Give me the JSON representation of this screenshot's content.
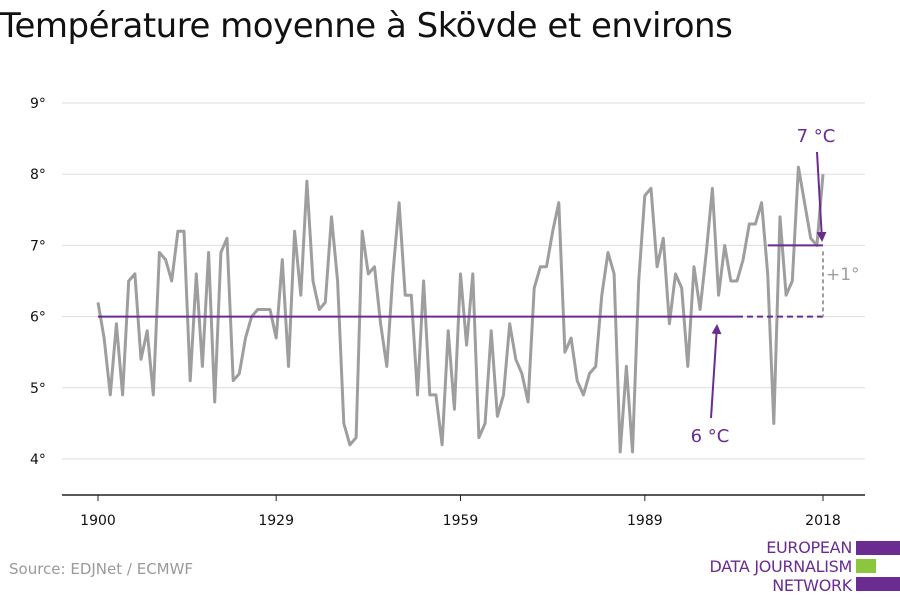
{
  "chart_data": {
    "type": "line",
    "title": "Température moyenne à Skövde et environs",
    "xlabel": "",
    "ylabel": "",
    "xlim": [
      1900,
      2018
    ],
    "ylim": [
      3.5,
      9.3
    ],
    "x_ticks": [
      1900,
      1929,
      1959,
      1989,
      2018
    ],
    "y_ticks": [
      {
        "value": 4,
        "label": "4°"
      },
      {
        "value": 5,
        "label": "5°"
      },
      {
        "value": 6,
        "label": "6°"
      },
      {
        "value": 7,
        "label": "7°"
      },
      {
        "value": 8,
        "label": "8°"
      },
      {
        "value": 9,
        "label": "9°"
      }
    ],
    "grid": true,
    "series": [
      {
        "x": [
          1900,
          1901,
          1902,
          1903,
          1904,
          1905,
          1906,
          1907,
          1908,
          1909,
          1910,
          1911,
          1912,
          1913,
          1914,
          1915,
          1916,
          1917,
          1918,
          1919,
          1920,
          1921,
          1922,
          1923,
          1924,
          1925,
          1926,
          1927,
          1928,
          1929,
          1930,
          1931,
          1932,
          1933,
          1934,
          1935,
          1936,
          1937,
          1938,
          1939,
          1940,
          1941,
          1942,
          1943,
          1944,
          1945,
          1946,
          1947,
          1948,
          1949,
          1950,
          1951,
          1952,
          1953,
          1954,
          1955,
          1956,
          1957,
          1958,
          1959,
          1960,
          1961,
          1962,
          1963,
          1964,
          1965,
          1966,
          1967,
          1968,
          1969,
          1970,
          1971,
          1972,
          1973,
          1974,
          1975,
          1976,
          1977,
          1978,
          1979,
          1980,
          1981,
          1982,
          1983,
          1984,
          1985,
          1986,
          1987,
          1988,
          1989,
          1990,
          1991,
          1992,
          1993,
          1994,
          1995,
          1996,
          1997,
          1998,
          1999,
          2000,
          2001,
          2002,
          2003,
          2004,
          2005,
          2006,
          2007,
          2008,
          2009,
          2010,
          2011,
          2012,
          2013,
          2014,
          2015,
          2016,
          2017,
          2018
        ],
        "values": [
          6.2,
          5.7,
          4.9,
          5.9,
          4.9,
          6.5,
          6.6,
          5.4,
          5.8,
          4.9,
          6.9,
          6.8,
          6.5,
          7.2,
          7.2,
          5.1,
          6.6,
          5.3,
          6.9,
          4.8,
          6.9,
          7.1,
          5.1,
          5.2,
          5.7,
          6.0,
          6.1,
          6.1,
          6.1,
          5.7,
          6.8,
          5.3,
          7.2,
          6.3,
          7.9,
          6.5,
          6.1,
          6.2,
          7.4,
          6.5,
          4.5,
          4.2,
          4.3,
          7.2,
          6.6,
          6.7,
          5.9,
          5.3,
          6.6,
          7.6,
          6.3,
          6.3,
          4.9,
          6.5,
          4.9,
          4.9,
          4.2,
          5.8,
          4.7,
          6.6,
          5.6,
          6.6,
          4.3,
          4.5,
          5.8,
          4.6,
          4.9,
          5.9,
          5.4,
          5.2,
          4.8,
          6.4,
          6.7,
          6.7,
          7.2,
          7.6,
          5.5,
          5.7,
          5.1,
          4.9,
          5.2,
          5.3,
          6.3,
          6.9,
          6.6,
          4.1,
          5.3,
          4.1,
          6.5,
          7.7,
          7.8,
          6.7,
          7.1,
          5.9,
          6.6,
          6.4,
          5.3,
          6.7,
          6.1,
          6.9,
          7.8,
          6.3,
          7.0,
          6.5,
          6.5,
          6.8,
          7.3,
          7.3,
          7.6,
          6.6,
          4.5,
          7.4,
          6.3,
          6.5,
          8.1,
          7.6,
          7.1,
          7.0,
          8.0
        ]
      }
    ],
    "annotations": {
      "baseline": {
        "value": 6,
        "label": "6 °C",
        "from": 1900,
        "to": 2018,
        "solid_until": 2004
      },
      "recent": {
        "value": 7,
        "label": "7 °C",
        "from": 2009,
        "to": 2018
      },
      "difference_label": "+1°"
    }
  },
  "source": "Source: EDJNet / ECMWF",
  "logo": {
    "lines": [
      "EUROPEAN",
      "DATA JOURNALISM",
      "NETWORK"
    ]
  },
  "colors": {
    "line": "#9e9e9e",
    "accent": "#6a2c91",
    "logo_green": "#8cc63f",
    "grid": "#dddddd",
    "axis": "#222222"
  }
}
